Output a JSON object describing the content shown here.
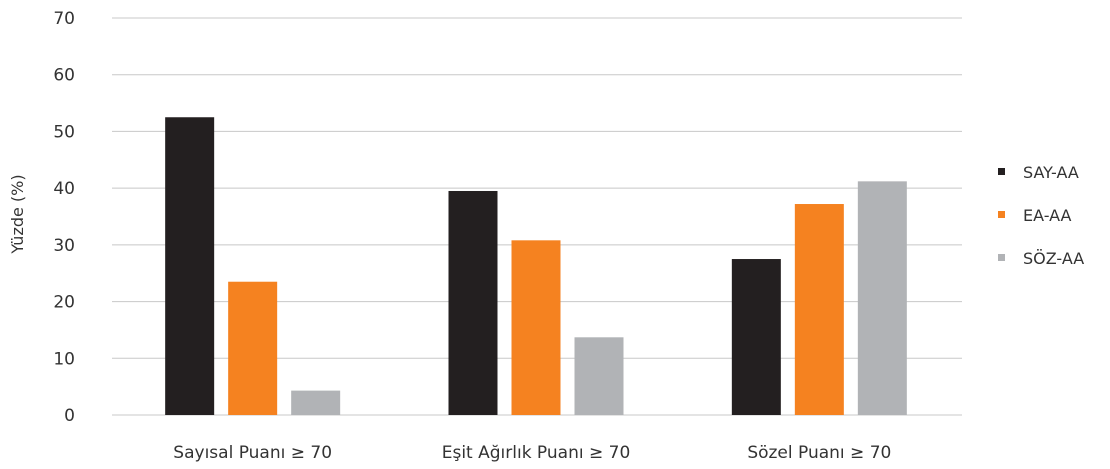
{
  "chart_data": {
    "type": "bar",
    "title": "",
    "xlabel": "",
    "ylabel": "Yüzde (%)",
    "ylim": [
      0,
      70
    ],
    "yticks": [
      0,
      10,
      20,
      30,
      40,
      50,
      60,
      70
    ],
    "grid": true,
    "legend_position": "right",
    "categories": [
      "Sayısal Puanı ≥ 70",
      "Eşit Ağırlık Puanı ≥ 70",
      "Sözel Puanı ≥ 70"
    ],
    "series": [
      {
        "name": "SAY-AA",
        "color": "#231f20",
        "values": [
          52.5,
          39.5,
          27.5
        ]
      },
      {
        "name": "EA-AA",
        "color": "#f58220",
        "values": [
          23.5,
          30.8,
          37.2
        ]
      },
      {
        "name": "SÖZ-AA",
        "color": "#b1b3b6",
        "values": [
          4.3,
          13.7,
          41.2
        ]
      }
    ]
  }
}
